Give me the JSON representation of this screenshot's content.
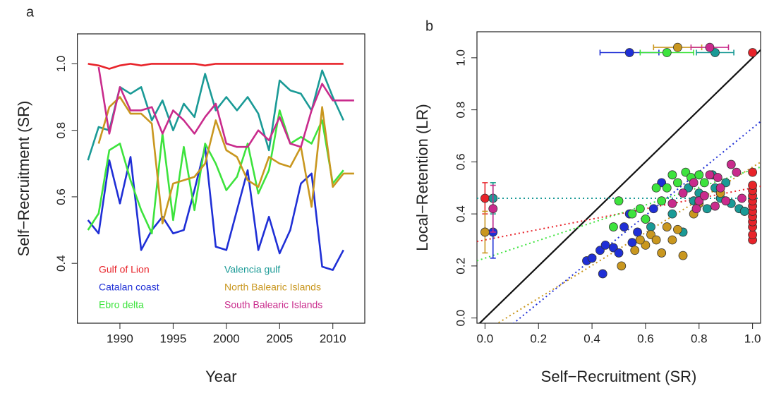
{
  "chart_data": [
    {
      "type": "line",
      "title": "a",
      "x_label": "Year",
      "y_label": "Self−Recruitment (SR)",
      "x": [
        1987,
        1988,
        1989,
        1990,
        1991,
        1992,
        1993,
        1994,
        1995,
        1996,
        1997,
        1998,
        1999,
        2000,
        2001,
        2002,
        2003,
        2004,
        2005,
        2006,
        2007,
        2008,
        2009,
        2010,
        2011,
        2012
      ],
      "xlim": [
        1986,
        2013
      ],
      "xticks": [
        1990,
        1995,
        2000,
        2005,
        2010
      ],
      "ylim": [
        0.22,
        1.09
      ],
      "yticks": [
        0.4,
        0.6,
        0.8,
        {
          "value": 1.0,
          "label": "1.0"
        }
      ],
      "series": [
        {
          "name": "Gulf of Lion",
          "color": "#e8232a",
          "values": [
            1.0,
            0.995,
            0.985,
            0.995,
            1.0,
            0.995,
            1.0,
            1.0,
            1.0,
            1.0,
            1.0,
            0.995,
            1.0,
            1.0,
            1.0,
            1.0,
            1.0,
            1.0,
            1.0,
            1.0,
            1.0,
            1.0,
            1.0,
            1.0,
            1.0,
            null
          ]
        },
        {
          "name": "Catalan coast",
          "color": "#1f2fd6",
          "values": [
            0.53,
            0.49,
            0.71,
            0.58,
            0.72,
            0.44,
            0.5,
            0.54,
            0.49,
            0.5,
            0.62,
            0.75,
            0.45,
            0.44,
            0.56,
            0.68,
            0.44,
            0.54,
            0.43,
            0.5,
            0.64,
            0.67,
            0.39,
            0.38,
            0.44,
            null
          ]
        },
        {
          "name": "Ebro delta",
          "color": "#3de33d",
          "values": [
            0.5,
            0.55,
            0.74,
            0.76,
            0.65,
            0.56,
            0.49,
            0.79,
            0.53,
            0.75,
            0.56,
            0.76,
            0.7,
            0.62,
            0.66,
            0.76,
            0.61,
            0.68,
            0.86,
            0.76,
            0.78,
            0.76,
            0.83,
            0.64,
            0.68,
            null
          ]
        },
        {
          "name": "Valencia gulf",
          "color": "#1a9a96",
          "values": [
            0.71,
            0.81,
            0.8,
            0.93,
            0.91,
            0.93,
            0.83,
            0.89,
            0.8,
            0.88,
            0.84,
            0.97,
            0.86,
            0.9,
            0.86,
            0.9,
            0.85,
            0.74,
            0.95,
            0.92,
            0.91,
            0.86,
            0.98,
            0.9,
            0.83,
            null
          ]
        },
        {
          "name": "North Balearic Islands",
          "color": "#c9971f",
          "values": [
            null,
            0.76,
            0.87,
            0.9,
            0.85,
            0.85,
            0.82,
            0.52,
            0.64,
            0.65,
            0.66,
            0.7,
            0.83,
            0.74,
            0.72,
            0.65,
            0.63,
            0.72,
            0.7,
            0.69,
            0.75,
            0.57,
            0.87,
            0.63,
            0.67,
            0.67
          ]
        },
        {
          "name": "South Balearic Islands",
          "color": "#c92b8c",
          "values": [
            null,
            0.99,
            0.79,
            0.93,
            0.86,
            0.86,
            0.87,
            0.79,
            0.86,
            0.83,
            0.79,
            0.84,
            0.88,
            0.76,
            0.75,
            0.75,
            0.8,
            0.77,
            0.84,
            0.76,
            0.75,
            0.86,
            0.94,
            0.89,
            0.89,
            0.89
          ]
        }
      ]
    },
    {
      "type": "scatter",
      "title": "b",
      "x_label": "Self−Recruitment (SR)",
      "y_label": "Local−Retention (LR)",
      "xlim": [
        -0.03,
        1.03
      ],
      "xticks": [
        {
          "value": 0.0,
          "label": "0.0"
        },
        0.2,
        0.4,
        0.6,
        0.8,
        {
          "value": 1.0,
          "label": "1.0"
        }
      ],
      "ylim": [
        -0.02,
        1.1
      ],
      "yticks": [
        {
          "value": 0.0,
          "label": "0.0"
        },
        0.2,
        0.4,
        0.6,
        0.8,
        {
          "value": 1.0,
          "label": "1.0"
        }
      ],
      "series": [
        {
          "color": "#e8232a",
          "x": [
            1.0,
            1.0,
            1.0,
            1.0,
            1.0,
            1.0,
            1.0,
            1.0,
            1.0,
            1.0,
            1.0,
            1.0
          ],
          "y": [
            0.3,
            0.32,
            0.35,
            0.37,
            0.39,
            0.41,
            0.43,
            0.45,
            0.47,
            0.49,
            0.51,
            0.56
          ],
          "sr_mean": 1.0,
          "sr_sd": 0.0,
          "lr_mean": 0.46,
          "lr_sd": 0.06,
          "trend": {
            "intercept": 0.3,
            "slope": 0.2
          }
        },
        {
          "color": "#1f2fd6",
          "x": [
            0.38,
            0.4,
            0.43,
            0.44,
            0.45,
            0.48,
            0.5,
            0.52,
            0.54,
            0.55,
            0.57,
            0.6,
            0.63,
            0.66
          ],
          "y": [
            0.22,
            0.23,
            0.26,
            0.17,
            0.28,
            0.27,
            0.25,
            0.35,
            0.4,
            0.29,
            0.33,
            0.38,
            0.42,
            0.52
          ],
          "sr_mean": 0.54,
          "sr_sd": 0.11,
          "lr_mean": 0.33,
          "lr_sd": 0.1,
          "trend": {
            "intercept": -0.11,
            "slope": 0.84
          }
        },
        {
          "color": "#3de33d",
          "x": [
            0.5,
            0.55,
            0.58,
            0.6,
            0.64,
            0.66,
            0.68,
            0.7,
            0.72,
            0.75,
            0.77,
            0.8,
            0.82,
            0.48
          ],
          "y": [
            0.45,
            0.4,
            0.42,
            0.38,
            0.5,
            0.45,
            0.5,
            0.55,
            0.52,
            0.56,
            0.54,
            0.55,
            0.52,
            0.35
          ],
          "sr_mean": 0.68,
          "sr_sd": 0.1,
          "lr_mean": 0.46,
          "lr_sd": 0.06,
          "trend": {
            "intercept": 0.23,
            "slope": 0.34
          }
        },
        {
          "color": "#1a9a96",
          "x": [
            0.62,
            0.7,
            0.74,
            0.78,
            0.8,
            0.83,
            0.86,
            0.88,
            0.9,
            0.92,
            0.95,
            0.97,
            0.85,
            0.76
          ],
          "y": [
            0.35,
            0.4,
            0.33,
            0.45,
            0.48,
            0.42,
            0.5,
            0.46,
            0.52,
            0.44,
            0.42,
            0.41,
            0.55,
            0.5
          ],
          "sr_mean": 0.86,
          "sr_sd": 0.07,
          "lr_mean": 0.46,
          "lr_sd": 0.06,
          "trend": {
            "intercept": 0.46,
            "slope": 0.0
          }
        },
        {
          "color": "#c9971f",
          "x": [
            0.51,
            0.56,
            0.6,
            0.62,
            0.64,
            0.66,
            0.68,
            0.7,
            0.72,
            0.74,
            0.78,
            0.8,
            0.88,
            0.58
          ],
          "y": [
            0.2,
            0.26,
            0.28,
            0.32,
            0.3,
            0.25,
            0.35,
            0.3,
            0.34,
            0.24,
            0.4,
            0.44,
            0.48,
            0.3
          ],
          "sr_mean": 0.72,
          "sr_sd": 0.09,
          "lr_mean": 0.33,
          "lr_sd": 0.08,
          "trend": {
            "intercept": -0.05,
            "slope": 0.63
          }
        },
        {
          "color": "#c92b8c",
          "x": [
            0.7,
            0.74,
            0.78,
            0.8,
            0.82,
            0.84,
            0.86,
            0.88,
            0.9,
            0.92,
            0.94,
            0.96,
            0.87,
            0.79
          ],
          "y": [
            0.44,
            0.48,
            0.52,
            0.45,
            0.47,
            0.55,
            0.43,
            0.5,
            0.45,
            0.59,
            0.56,
            0.46,
            0.54,
            0.42
          ],
          "sr_mean": 0.84,
          "sr_sd": 0.07,
          "lr_mean": 0.42,
          "lr_sd": 0.09
        }
      ]
    }
  ]
}
